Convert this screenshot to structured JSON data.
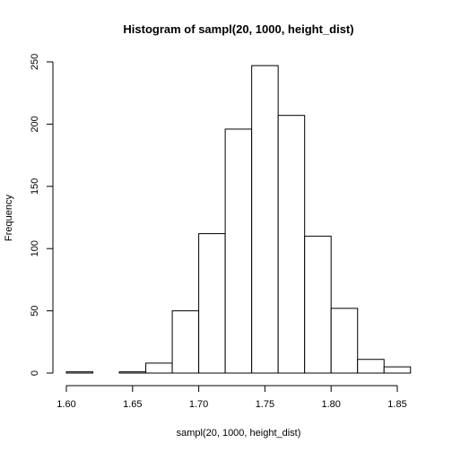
{
  "chart_data": {
    "type": "bar",
    "title": "Histogram of sampl(20, 1000, height_dist)",
    "xlabel": "sampl(20, 1000, height_dist)",
    "ylabel": "Frequency",
    "bins": [
      {
        "start": 1.6,
        "end": 1.62,
        "count": 1
      },
      {
        "start": 1.62,
        "end": 1.64,
        "count": 0
      },
      {
        "start": 1.64,
        "end": 1.66,
        "count": 1
      },
      {
        "start": 1.66,
        "end": 1.68,
        "count": 8
      },
      {
        "start": 1.68,
        "end": 1.7,
        "count": 50
      },
      {
        "start": 1.7,
        "end": 1.72,
        "count": 112
      },
      {
        "start": 1.72,
        "end": 1.74,
        "count": 196
      },
      {
        "start": 1.74,
        "end": 1.76,
        "count": 247
      },
      {
        "start": 1.76,
        "end": 1.78,
        "count": 207
      },
      {
        "start": 1.78,
        "end": 1.8,
        "count": 110
      },
      {
        "start": 1.8,
        "end": 1.82,
        "count": 52
      },
      {
        "start": 1.82,
        "end": 1.84,
        "count": 11
      },
      {
        "start": 1.84,
        "end": 1.86,
        "count": 5
      }
    ],
    "xlim": [
      1.6,
      1.85
    ],
    "ylim": [
      0,
      250
    ],
    "x_ticks": [
      "1.60",
      "1.65",
      "1.70",
      "1.75",
      "1.80",
      "1.85"
    ],
    "y_ticks": [
      "0",
      "50",
      "100",
      "150",
      "200",
      "250"
    ],
    "grid": false,
    "legend": "none"
  }
}
